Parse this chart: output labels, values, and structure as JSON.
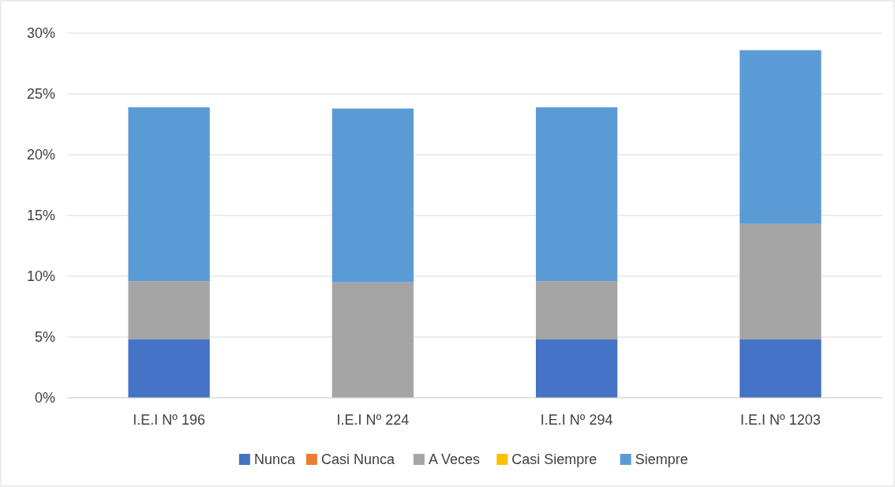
{
  "chart_data": {
    "type": "bar",
    "stacked": true,
    "categories": [
      "I.E.I Nº 196",
      "I.E.I Nº 224",
      "I.E.I Nº 294",
      "I.E.I Nº 1203"
    ],
    "series": [
      {
        "name": "Nunca",
        "color": "#4472c4",
        "values": [
          4.8,
          0,
          4.8,
          4.8
        ]
      },
      {
        "name": "Casi Nunca",
        "color": "#ed7d31",
        "values": [
          0,
          0,
          0,
          0
        ]
      },
      {
        "name": "A Veces",
        "color": "#a5a5a5",
        "values": [
          4.8,
          9.5,
          4.8,
          9.5
        ]
      },
      {
        "name": "Casi Siempre",
        "color": "#ffc000",
        "values": [
          0,
          0,
          0,
          0
        ]
      },
      {
        "name": "Siempre",
        "color": "#5b9bd5",
        "values": [
          14.3,
          14.3,
          14.3,
          14.3
        ]
      }
    ],
    "ylim": [
      0,
      30
    ],
    "yticks": [
      {
        "value": 0,
        "label": "0%"
      },
      {
        "value": 5,
        "label": "5%"
      },
      {
        "value": 10,
        "label": "10%"
      },
      {
        "value": 15,
        "label": "15%"
      },
      {
        "value": 20,
        "label": "20%"
      },
      {
        "value": 25,
        "label": "25%"
      },
      {
        "value": 30,
        "label": "30%"
      }
    ],
    "grid": "y",
    "legend": "bottom"
  }
}
